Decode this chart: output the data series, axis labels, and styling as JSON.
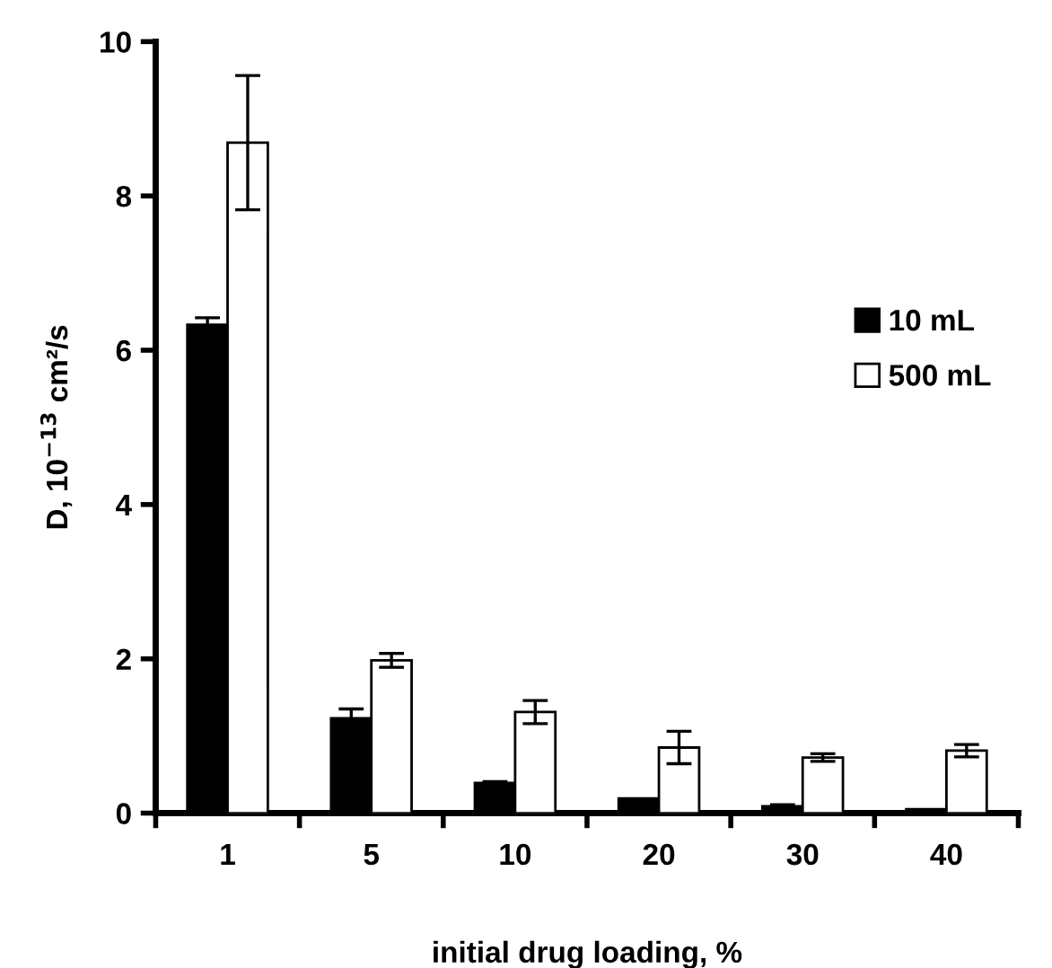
{
  "chart_data": {
    "type": "bar",
    "xlabel": "initial drug loading, %",
    "ylabel": "D, 10$^{−13}$ cm²/s",
    "categories": [
      "1",
      "5",
      "10",
      "20",
      "30",
      "40"
    ],
    "series": [
      {
        "name": "10 mL",
        "color": "#000000",
        "values": [
          6.33,
          1.23,
          0.39,
          0.19,
          0.09,
          0.05
        ],
        "errors": [
          0.09,
          0.12,
          0.02,
          null,
          0.02,
          null
        ]
      },
      {
        "name": "500 mL",
        "color": "#ffffff",
        "values": [
          8.69,
          1.98,
          1.31,
          0.85,
          0.72,
          0.81
        ],
        "errors": [
          0.87,
          0.09,
          0.15,
          0.21,
          0.05,
          0.08
        ]
      }
    ],
    "ylim": [
      0,
      10
    ],
    "yticks": [
      0,
      2,
      4,
      6,
      8,
      10
    ],
    "grid": false,
    "legend": "right"
  }
}
